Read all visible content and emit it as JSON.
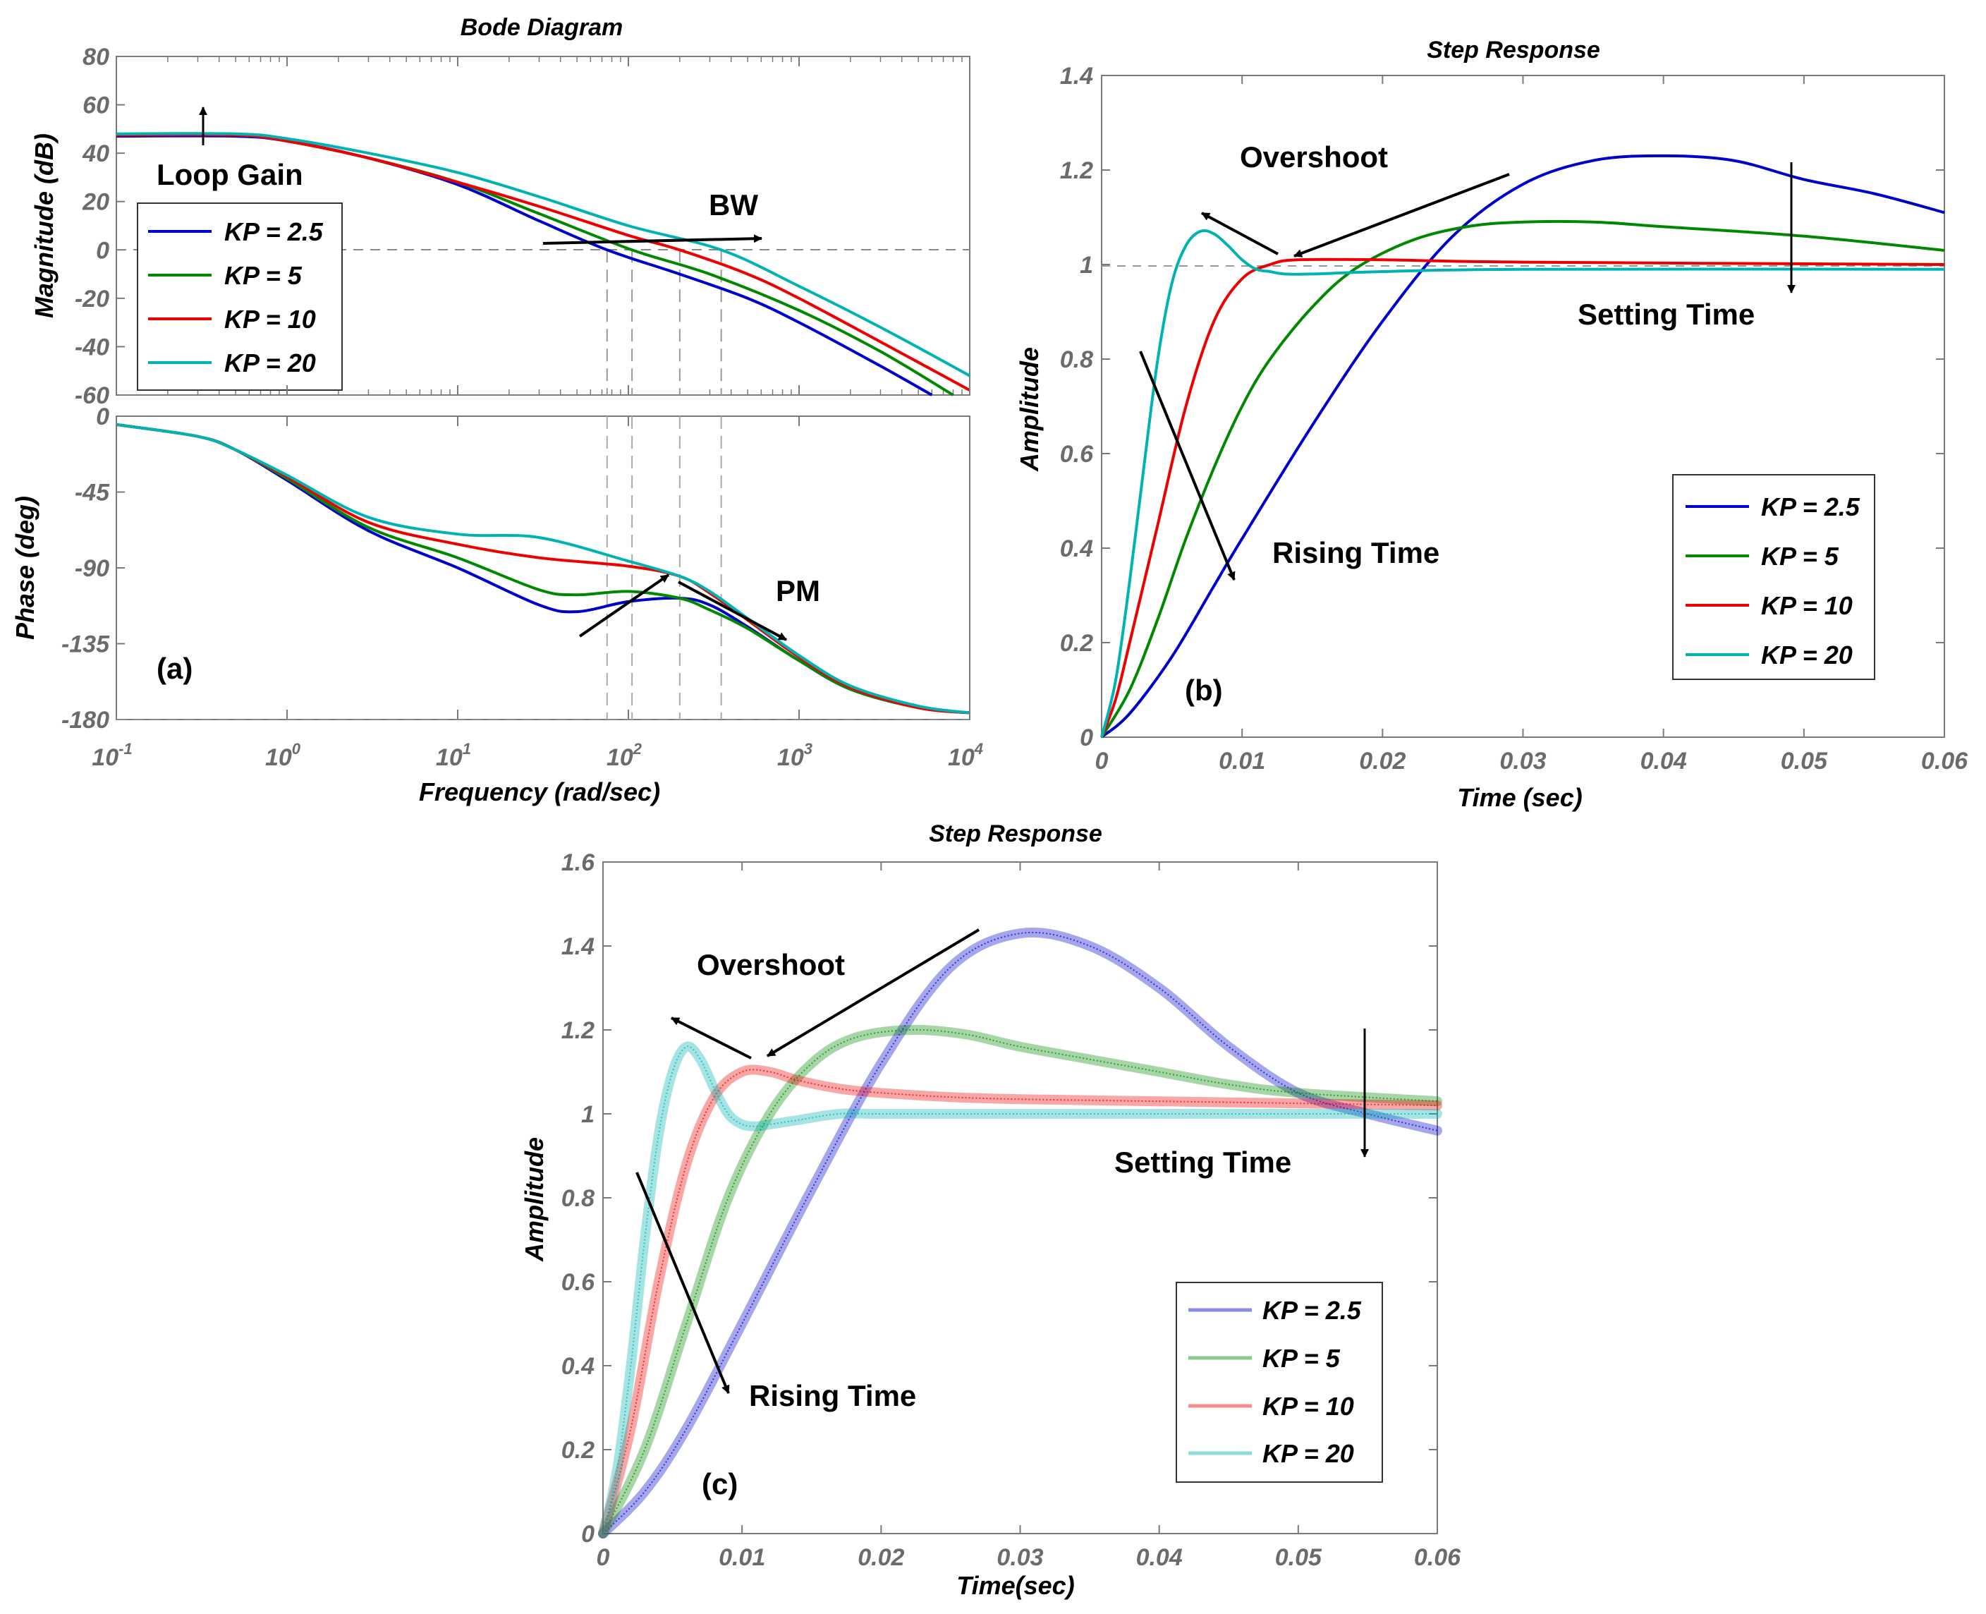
{
  "colors": {
    "kp2_5": "#0000cc",
    "kp5": "#008800",
    "kp10": "#ee0000",
    "kp20": "#00b3b3"
  },
  "chart_data": [
    {
      "id": "a",
      "type": "line",
      "title": "Bode Diagram",
      "panel_label": "(a)",
      "xlabel": "Frequency  (rad/sec)",
      "xscale": "log",
      "xlim": [
        0.1,
        10000
      ],
      "xticks": [
        {
          "base": "10",
          "exp": "-1"
        },
        {
          "base": "10",
          "exp": "0"
        },
        {
          "base": "10",
          "exp": "1"
        },
        {
          "base": "10",
          "exp": "2"
        },
        {
          "base": "10",
          "exp": "3"
        },
        {
          "base": "10",
          "exp": "4"
        }
      ],
      "legend": [
        "KP = 2.5",
        "KP = 5",
        "KP = 10",
        "KP = 20"
      ],
      "crossover_frequencies": [
        75,
        105,
        200,
        350
      ],
      "magnitude": {
        "ylabel": "Magnitude (dB)",
        "ylim": [
          -60,
          80
        ],
        "yticks": [
          "80",
          "60",
          "40",
          "20",
          "0",
          "-20",
          "-40",
          "-60"
        ],
        "series": [
          {
            "name": "KP = 2.5",
            "x": [
              0.1,
              0.5,
              1,
              3,
              10,
              30,
              75,
              200,
              500,
              1000,
              3000,
              6000
            ],
            "values": [
              47,
              47,
              45,
              38,
              27,
              12,
              0,
              -10,
              -20,
              -30,
              -48,
              -60
            ]
          },
          {
            "name": "KP = 5",
            "x": [
              0.1,
              0.5,
              1,
              3,
              10,
              30,
              105,
              300,
              1000,
              3000,
              8000
            ],
            "values": [
              47.5,
              47.5,
              45,
              38,
              28,
              15,
              0,
              -10,
              -25,
              -42,
              -60
            ]
          },
          {
            "name": "KP = 10",
            "x": [
              0.1,
              0.5,
              1,
              3,
              10,
              30,
              100,
              200,
              500,
              1000,
              3000,
              10000
            ],
            "values": [
              47.5,
              47.5,
              45,
              38,
              28,
              18,
              6,
              0,
              -10,
              -20,
              -38,
              -58
            ]
          },
          {
            "name": "KP = 20",
            "x": [
              0.1,
              0.5,
              1,
              3,
              10,
              30,
              100,
              350,
              1000,
              3000,
              10000
            ],
            "values": [
              48,
              48,
              46,
              40,
              32,
              22,
              10,
              0,
              -15,
              -32,
              -52
            ]
          }
        ]
      },
      "phase": {
        "ylabel": "Phase (deg)",
        "ylim": [
          -180,
          0
        ],
        "yticks": [
          "0",
          "-45",
          "-90",
          "-135",
          "-180"
        ],
        "series": [
          {
            "name": "KP = 2.5",
            "x": [
              0.1,
              0.3,
              0.5,
              1,
              3,
              10,
              30,
              50,
              100,
              200,
              300,
              500,
              1000,
              2000,
              5000,
              10000
            ],
            "values": [
              -5,
              -12,
              -20,
              -38,
              -68,
              -90,
              -112,
              -116,
              -110,
              -108,
              -112,
              -125,
              -145,
              -162,
              -173,
              -176
            ]
          },
          {
            "name": "KP = 5",
            "x": [
              0.1,
              0.3,
              0.5,
              1,
              3,
              10,
              30,
              50,
              100,
              200,
              300,
              500,
              1000,
              2000,
              5000,
              10000
            ],
            "values": [
              -5,
              -12,
              -20,
              -37,
              -66,
              -84,
              -103,
              -106,
              -104,
              -108,
              -115,
              -126,
              -145,
              -162,
              -173,
              -176
            ]
          },
          {
            "name": "KP = 10",
            "x": [
              0.1,
              0.3,
              0.5,
              1,
              3,
              10,
              30,
              100,
              200,
              300,
              500,
              1000,
              2000,
              5000,
              10000
            ],
            "values": [
              -5,
              -12,
              -20,
              -36,
              -63,
              -76,
              -84,
              -89,
              -95,
              -105,
              -121,
              -143,
              -161,
              -173,
              -176
            ]
          },
          {
            "name": "KP = 20",
            "x": [
              0.1,
              0.3,
              0.5,
              1,
              3,
              10,
              30,
              100,
              200,
              300,
              500,
              1000,
              2000,
              5000,
              10000
            ],
            "values": [
              -5,
              -12,
              -20,
              -35,
              -60,
              -70,
              -72,
              -86,
              -95,
              -104,
              -120,
              -142,
              -160,
              -172,
              -176
            ]
          }
        ]
      },
      "annotations": [
        "Loop Gain",
        "BW",
        "PM"
      ]
    },
    {
      "id": "b",
      "type": "line",
      "title": "Step Response",
      "panel_label": "(b)",
      "xlabel": "Time (sec)",
      "ylabel": "Amplitude",
      "xlim": [
        0,
        0.06
      ],
      "ylim": [
        0,
        1.4
      ],
      "xticks": [
        "0",
        "0.01",
        "0.02",
        "0.03",
        "0.04",
        "0.05",
        "0.06"
      ],
      "yticks": [
        "0",
        "0.2",
        "0.4",
        "0.6",
        "0.8",
        "1",
        "1.2",
        "1.4"
      ],
      "reference_level": 1,
      "legend": [
        "KP = 2.5",
        "KP = 5",
        "KP = 10",
        "KP = 20"
      ],
      "series": [
        {
          "name": "KP = 2.5",
          "x": [
            0,
            0.002,
            0.005,
            0.008,
            0.01,
            0.015,
            0.02,
            0.025,
            0.03,
            0.035,
            0.04,
            0.045,
            0.05,
            0.055,
            0.06
          ],
          "values": [
            0,
            0.05,
            0.17,
            0.32,
            0.42,
            0.66,
            0.88,
            1.06,
            1.17,
            1.22,
            1.23,
            1.22,
            1.18,
            1.15,
            1.11
          ]
        },
        {
          "name": "KP = 5",
          "x": [
            0,
            0.002,
            0.004,
            0.006,
            0.008,
            0.01,
            0.012,
            0.015,
            0.018,
            0.022,
            0.026,
            0.03,
            0.035,
            0.04,
            0.05,
            0.06
          ],
          "values": [
            0,
            0.1,
            0.25,
            0.42,
            0.57,
            0.7,
            0.8,
            0.91,
            0.99,
            1.05,
            1.08,
            1.09,
            1.09,
            1.08,
            1.06,
            1.03
          ]
        },
        {
          "name": "KP = 10",
          "x": [
            0,
            0.001,
            0.002,
            0.004,
            0.006,
            0.008,
            0.01,
            0.012,
            0.014,
            0.02,
            0.03,
            0.06
          ],
          "values": [
            0,
            0.08,
            0.2,
            0.45,
            0.7,
            0.88,
            0.97,
            1.0,
            1.01,
            1.01,
            1.005,
            1.0
          ]
        },
        {
          "name": "KP = 20",
          "x": [
            0,
            0.001,
            0.002,
            0.003,
            0.004,
            0.005,
            0.006,
            0.007,
            0.008,
            0.009,
            0.01,
            0.011,
            0.012,
            0.013,
            0.015,
            0.02,
            0.03,
            0.06
          ],
          "values": [
            0,
            0.12,
            0.33,
            0.57,
            0.8,
            0.96,
            1.04,
            1.07,
            1.065,
            1.04,
            1.01,
            0.99,
            0.985,
            0.98,
            0.98,
            0.985,
            0.99,
            0.99
          ]
        }
      ],
      "annotations": [
        "Overshoot",
        "Setting Time",
        "Rising Time"
      ]
    },
    {
      "id": "c",
      "type": "line",
      "title": "Step Response",
      "panel_label": "(c)",
      "xlabel": "Time(sec)",
      "ylabel": "Amplitude",
      "xlim": [
        0,
        0.06
      ],
      "ylim": [
        0,
        1.6
      ],
      "xticks": [
        "0",
        "0.01",
        "0.02",
        "0.03",
        "0.04",
        "0.05",
        "0.06"
      ],
      "yticks": [
        "0",
        "0.2",
        "0.4",
        "0.6",
        "0.8",
        "1",
        "1.2",
        "1.4",
        "1.6"
      ],
      "legend": [
        "KP = 2.5",
        "KP = 5",
        "KP = 10",
        "KP = 20"
      ],
      "series": [
        {
          "name": "KP = 2.5",
          "x": [
            0,
            0.003,
            0.006,
            0.01,
            0.015,
            0.02,
            0.025,
            0.03,
            0.035,
            0.04,
            0.045,
            0.05,
            0.055,
            0.06
          ],
          "values": [
            0,
            0.1,
            0.25,
            0.5,
            0.82,
            1.12,
            1.35,
            1.43,
            1.4,
            1.3,
            1.16,
            1.05,
            1.0,
            0.96
          ]
        },
        {
          "name": "KP = 5",
          "x": [
            0,
            0.003,
            0.006,
            0.009,
            0.012,
            0.015,
            0.018,
            0.022,
            0.026,
            0.03,
            0.035,
            0.04,
            0.045,
            0.05,
            0.06
          ],
          "values": [
            0,
            0.2,
            0.5,
            0.8,
            1.0,
            1.12,
            1.18,
            1.2,
            1.19,
            1.16,
            1.13,
            1.1,
            1.07,
            1.05,
            1.03
          ]
        },
        {
          "name": "KP = 10",
          "x": [
            0,
            0.002,
            0.004,
            0.006,
            0.008,
            0.01,
            0.012,
            0.014,
            0.017,
            0.02,
            0.025,
            0.03,
            0.04,
            0.05,
            0.06
          ],
          "values": [
            0,
            0.25,
            0.6,
            0.88,
            1.04,
            1.1,
            1.1,
            1.08,
            1.06,
            1.05,
            1.04,
            1.035,
            1.03,
            1.025,
            1.02
          ]
        },
        {
          "name": "KP = 20",
          "x": [
            0,
            0.001,
            0.002,
            0.003,
            0.004,
            0.005,
            0.006,
            0.007,
            0.008,
            0.009,
            0.01,
            0.011,
            0.012,
            0.014,
            0.017,
            0.02,
            0.03,
            0.06
          ],
          "values": [
            0,
            0.15,
            0.4,
            0.7,
            0.95,
            1.1,
            1.16,
            1.13,
            1.06,
            1.0,
            0.975,
            0.97,
            0.975,
            0.985,
            1.0,
            1.0,
            1.0,
            1.0
          ]
        }
      ],
      "annotations": [
        "Overshoot",
        "Setting Time",
        "Rising Time"
      ]
    }
  ]
}
